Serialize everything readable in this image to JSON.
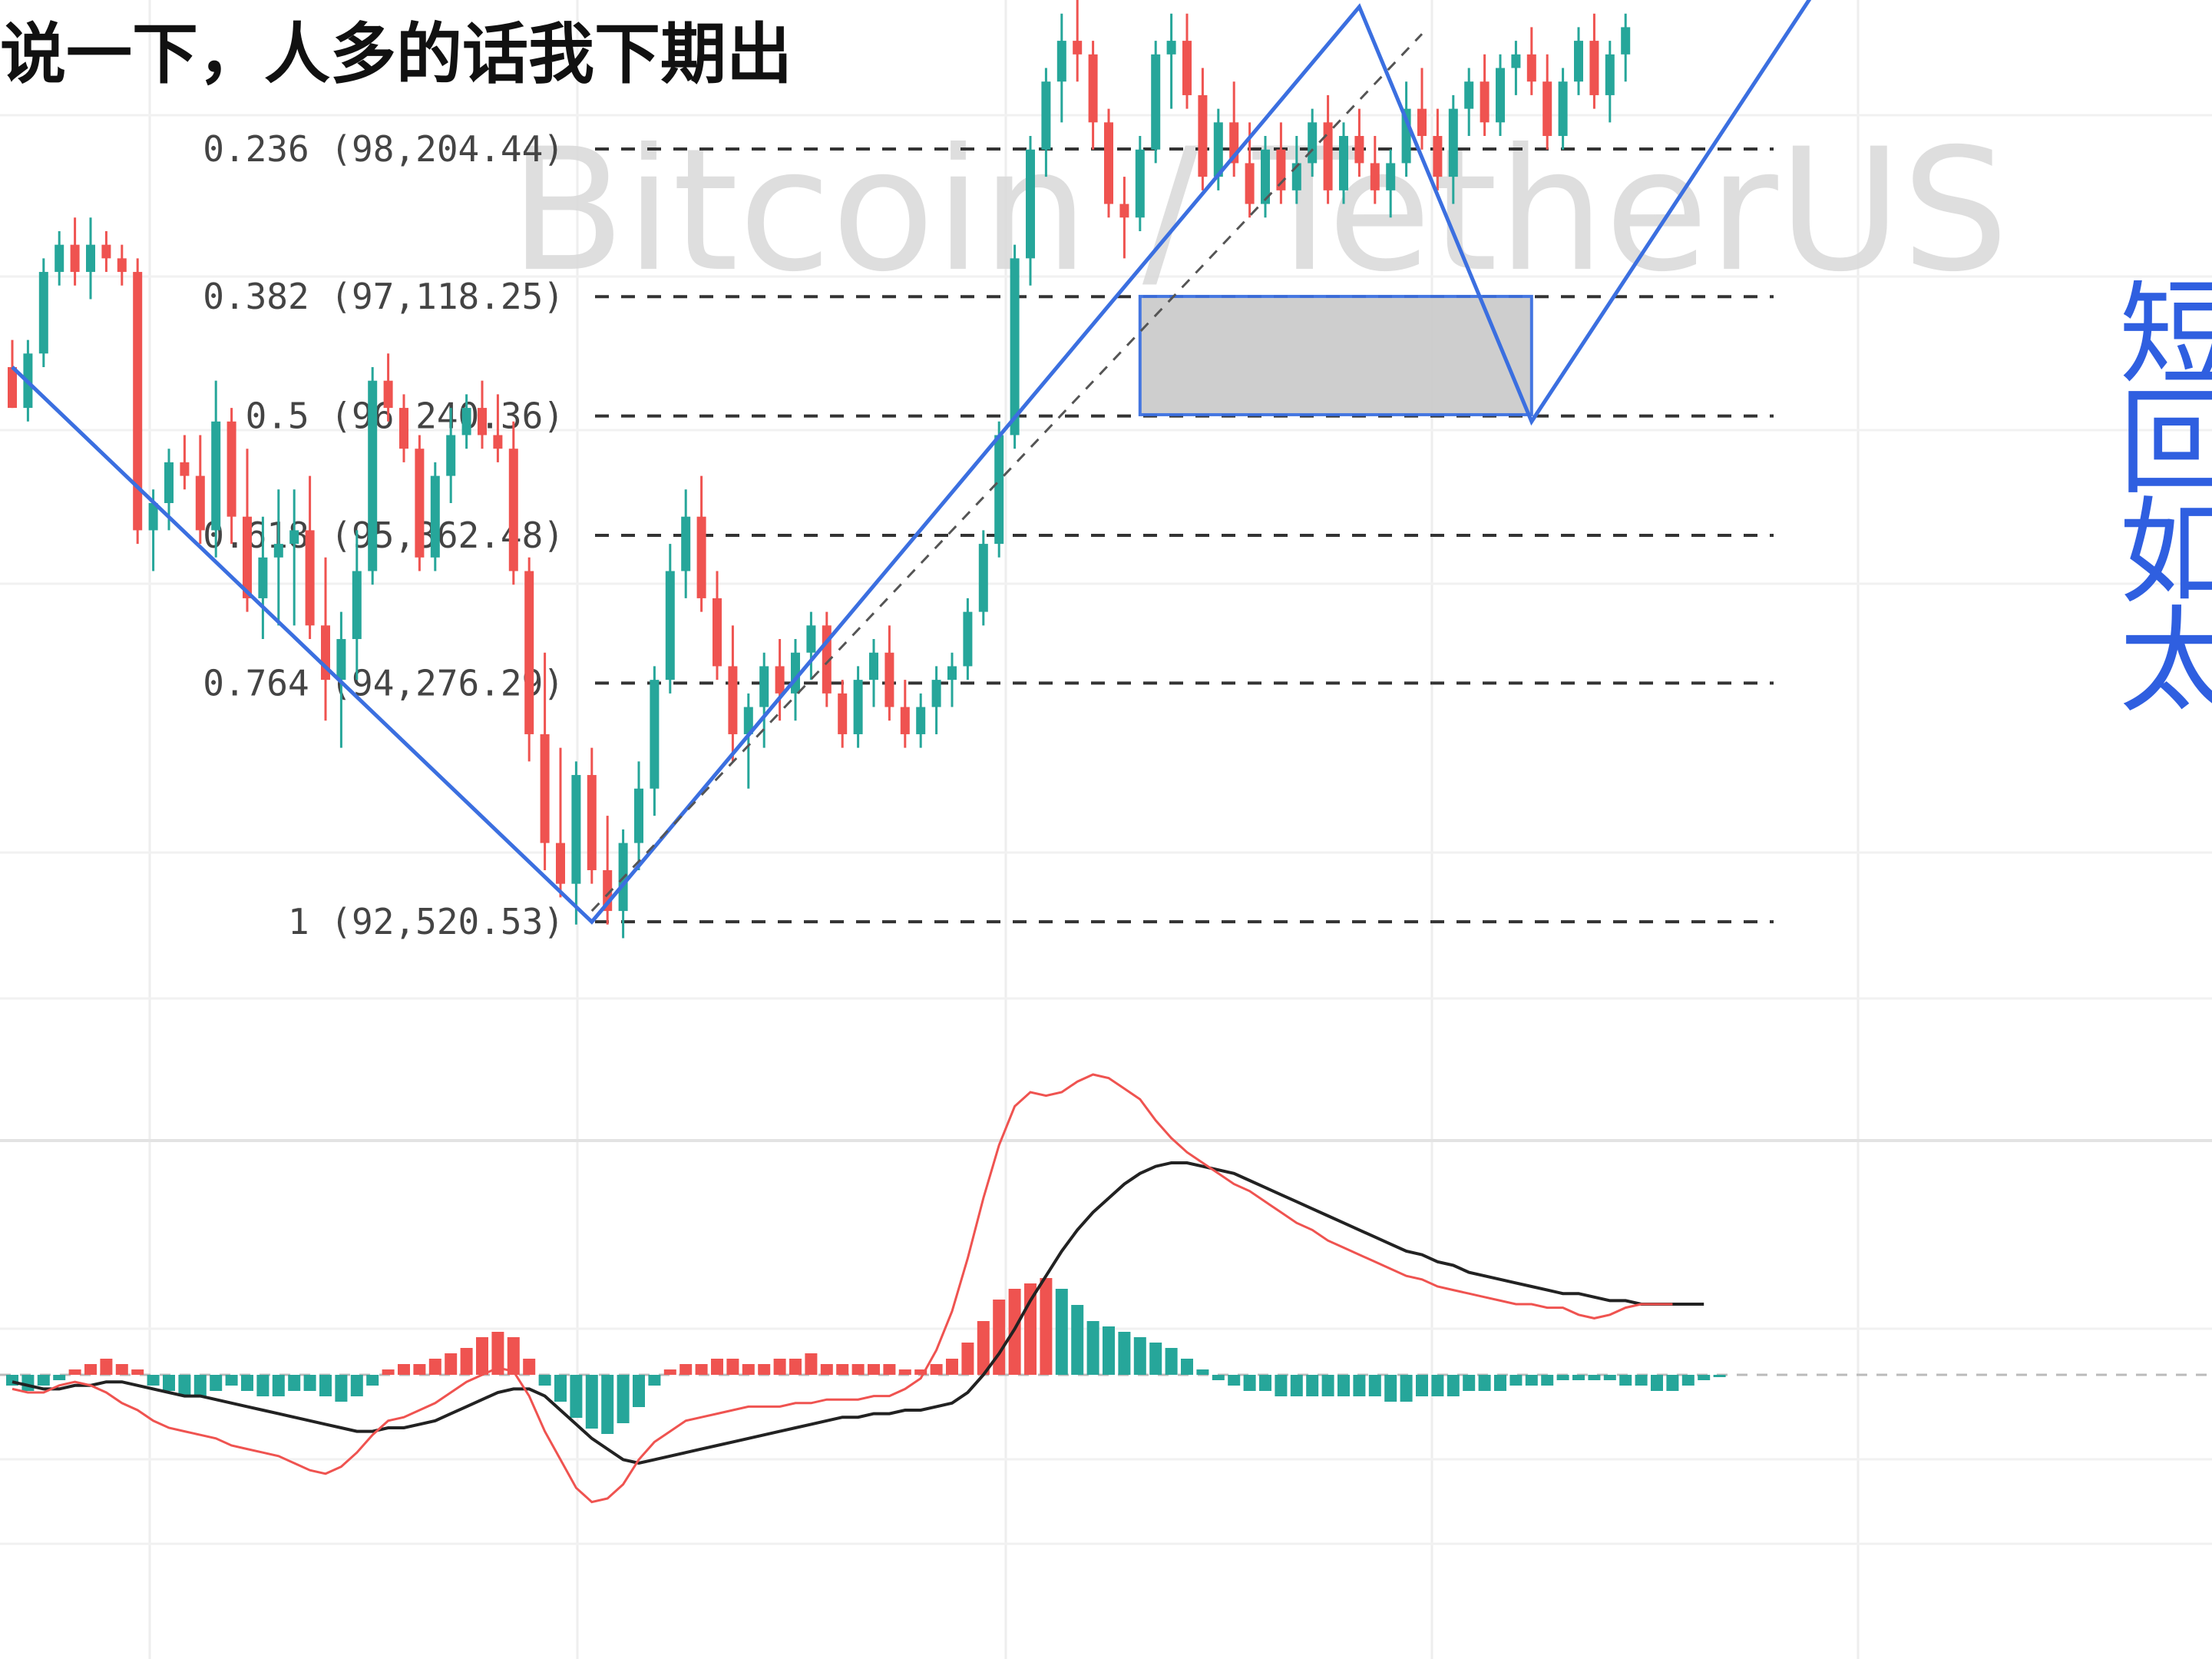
{
  "caption": "说一下，人多的话我下期出",
  "watermark": "Bitcoin / TetherUS",
  "side_note": [
    "短",
    "回",
    "如",
    "太"
  ],
  "colors": {
    "up": "#26a69a",
    "down": "#ef5350",
    "drawing": "#3b6fe0",
    "zone_fill": "#cccccc",
    "macd_signal": "#222222",
    "macd_line": "#ef5350"
  },
  "chart_data": {
    "type": "candlestick",
    "title": "Bitcoin / TetherUS",
    "ylim": [
      91900,
      99300
    ],
    "fibonacci": [
      {
        "ratio": "0.236",
        "price": "98,204.44",
        "value": 98204.44
      },
      {
        "ratio": "0.382",
        "price": "97,118.25",
        "value": 97118.25
      },
      {
        "ratio": "0.5",
        "price": "96,240.36",
        "value": 96240.36
      },
      {
        "ratio": "0.618",
        "price": "95,362.48",
        "value": 95362.48
      },
      {
        "ratio": "0.764",
        "price": "94,276.29",
        "value": 94276.29
      },
      {
        "ratio": "1",
        "price": "92,520.53",
        "value": 92520.53
      }
    ],
    "projection_zone": {
      "top": 97120,
      "bottom": 96250,
      "start_bar": 72,
      "end_bar": 97
    },
    "candles": [
      [
        96600,
        96800,
        96300,
        96300
      ],
      [
        96300,
        96800,
        96200,
        96700
      ],
      [
        96700,
        97400,
        96600,
        97300
      ],
      [
        97300,
        97600,
        97200,
        97500
      ],
      [
        97500,
        97700,
        97200,
        97300
      ],
      [
        97300,
        97700,
        97100,
        97500
      ],
      [
        97500,
        97600,
        97300,
        97400
      ],
      [
        97400,
        97500,
        97200,
        97300
      ],
      [
        97300,
        97400,
        95300,
        95400
      ],
      [
        95400,
        95700,
        95100,
        95600
      ],
      [
        95600,
        96000,
        95400,
        95900
      ],
      [
        95900,
        96100,
        95700,
        95800
      ],
      [
        95800,
        96100,
        95300,
        95400
      ],
      [
        95400,
        96500,
        95200,
        96200
      ],
      [
        96200,
        96300,
        95300,
        95500
      ],
      [
        95500,
        96000,
        94800,
        94900
      ],
      [
        94900,
        95500,
        94600,
        95200
      ],
      [
        95200,
        95700,
        94700,
        95300
      ],
      [
        95300,
        95700,
        94700,
        95400
      ],
      [
        95400,
        95800,
        94600,
        94700
      ],
      [
        94700,
        95200,
        94000,
        94300
      ],
      [
        94300,
        94800,
        93800,
        94600
      ],
      [
        94600,
        95400,
        94300,
        95100
      ],
      [
        95100,
        96600,
        95000,
        96500
      ],
      [
        96500,
        96700,
        96200,
        96300
      ],
      [
        96300,
        96400,
        95900,
        96000
      ],
      [
        96000,
        96100,
        95100,
        95200
      ],
      [
        95200,
        95900,
        95100,
        95800
      ],
      [
        95800,
        96300,
        95600,
        96100
      ],
      [
        96100,
        96400,
        96000,
        96300
      ],
      [
        96300,
        96500,
        96000,
        96100
      ],
      [
        96100,
        96400,
        95900,
        96000
      ],
      [
        96000,
        96200,
        95000,
        95100
      ],
      [
        95100,
        95200,
        93700,
        93900
      ],
      [
        93900,
        94500,
        92900,
        93100
      ],
      [
        93100,
        93800,
        92700,
        92800
      ],
      [
        92800,
        93700,
        92500,
        93600
      ],
      [
        93600,
        93800,
        92800,
        92900
      ],
      [
        92900,
        93300,
        92500,
        92600
      ],
      [
        92600,
        93200,
        92400,
        93100
      ],
      [
        93100,
        93700,
        92900,
        93500
      ],
      [
        93500,
        94400,
        93300,
        94300
      ],
      [
        94300,
        95300,
        94200,
        95100
      ],
      [
        95100,
        95700,
        94900,
        95500
      ],
      [
        95500,
        95800,
        94800,
        94900
      ],
      [
        94900,
        95100,
        94300,
        94400
      ],
      [
        94400,
        94700,
        93700,
        93900
      ],
      [
        93900,
        94200,
        93500,
        94100
      ],
      [
        94100,
        94500,
        93800,
        94400
      ],
      [
        94400,
        94600,
        94000,
        94200
      ],
      [
        94200,
        94600,
        94000,
        94500
      ],
      [
        94500,
        94800,
        94300,
        94700
      ],
      [
        94700,
        94800,
        94100,
        94200
      ],
      [
        94200,
        94300,
        93800,
        93900
      ],
      [
        93900,
        94400,
        93800,
        94300
      ],
      [
        94300,
        94600,
        94100,
        94500
      ],
      [
        94500,
        94700,
        94000,
        94100
      ],
      [
        94100,
        94300,
        93800,
        93900
      ],
      [
        93900,
        94200,
        93800,
        94100
      ],
      [
        94100,
        94400,
        93900,
        94300
      ],
      [
        94300,
        94500,
        94100,
        94400
      ],
      [
        94400,
        94900,
        94300,
        94800
      ],
      [
        94800,
        95400,
        94700,
        95300
      ],
      [
        95300,
        96200,
        95200,
        96100
      ],
      [
        96100,
        97500,
        96000,
        97400
      ],
      [
        97400,
        98300,
        97200,
        98200
      ],
      [
        98200,
        98800,
        98000,
        98700
      ],
      [
        98700,
        99200,
        98400,
        99000
      ],
      [
        99000,
        99300,
        98700,
        98900
      ],
      [
        98900,
        99000,
        98200,
        98400
      ],
      [
        98400,
        98500,
        97700,
        97800
      ],
      [
        97800,
        98000,
        97400,
        97700
      ],
      [
        97700,
        98300,
        97600,
        98200
      ],
      [
        98200,
        99000,
        98100,
        98900
      ],
      [
        98900,
        99200,
        98500,
        99000
      ],
      [
        99000,
        99200,
        98500,
        98600
      ],
      [
        98600,
        98800,
        97900,
        98000
      ],
      [
        98000,
        98500,
        97900,
        98400
      ],
      [
        98400,
        98700,
        98000,
        98100
      ],
      [
        98100,
        98400,
        97700,
        97800
      ],
      [
        97800,
        98300,
        97700,
        98200
      ],
      [
        98200,
        98400,
        97800,
        97900
      ],
      [
        97900,
        98300,
        97800,
        98100
      ],
      [
        98100,
        98500,
        98000,
        98400
      ],
      [
        98400,
        98600,
        97800,
        97900
      ],
      [
        97900,
        98400,
        97800,
        98300
      ],
      [
        98300,
        98500,
        98000,
        98100
      ],
      [
        98100,
        98300,
        97800,
        97900
      ],
      [
        97900,
        98200,
        97700,
        98100
      ],
      [
        98100,
        98700,
        98000,
        98500
      ],
      [
        98500,
        98800,
        98200,
        98300
      ],
      [
        98300,
        98500,
        97900,
        98000
      ],
      [
        98000,
        98600,
        97800,
        98500
      ],
      [
        98500,
        98800,
        98300,
        98700
      ],
      [
        98700,
        98900,
        98300,
        98400
      ],
      [
        98400,
        98900,
        98300,
        98800
      ],
      [
        98800,
        99000,
        98600,
        98900
      ],
      [
        98900,
        99100,
        98600,
        98700
      ],
      [
        98700,
        98900,
        98200,
        98300
      ],
      [
        98300,
        98800,
        98200,
        98700
      ],
      [
        98700,
        99100,
        98600,
        99000
      ],
      [
        99000,
        99200,
        98500,
        98600
      ],
      [
        98600,
        99000,
        98400,
        98900
      ],
      [
        98900,
        99200,
        98700,
        99100
      ]
    ],
    "zigzag_drawn": [
      [
        0,
        96600
      ],
      [
        37,
        92520
      ],
      [
        86,
        99250
      ],
      [
        97,
        96200
      ],
      [
        115,
        99350
      ]
    ],
    "dashed_channel": [
      [
        37,
        92600
      ],
      [
        90,
        99050
      ]
    ],
    "macd": {
      "histogram": [
        -2,
        -3,
        -2,
        -1,
        1,
        2,
        3,
        2,
        1,
        -2,
        -3,
        -4,
        -4,
        -3,
        -2,
        -3,
        -4,
        -4,
        -3,
        -3,
        -4,
        -5,
        -4,
        -2,
        1,
        2,
        2,
        3,
        4,
        5,
        7,
        8,
        7,
        3,
        -2,
        -5,
        -8,
        -10,
        -11,
        -9,
        -6,
        -2,
        1,
        2,
        2,
        3,
        3,
        2,
        2,
        3,
        3,
        4,
        2,
        2,
        2,
        2,
        2,
        1,
        1,
        2,
        3,
        6,
        10,
        14,
        16,
        17,
        18,
        16,
        13,
        10,
        9,
        8,
        7,
        6,
        5,
        3,
        1,
        -1,
        -2,
        -3,
        -3,
        -4,
        -4,
        -4,
        -4,
        -4,
        -4,
        -4,
        -5,
        -5,
        -4,
        -4,
        -4,
        -3,
        -3,
        -3,
        -2,
        -2,
        -2,
        -1,
        -1,
        -1,
        -1,
        -2,
        -2,
        -3,
        -3,
        -2,
        -1,
        0
      ],
      "line_black": [
        -2,
        -3,
        -4,
        -4,
        -3,
        -3,
        -2,
        -2,
        -3,
        -4,
        -5,
        -6,
        -6,
        -7,
        -8,
        -9,
        -10,
        -11,
        -12,
        -13,
        -14,
        -15,
        -16,
        -16,
        -15,
        -15,
        -14,
        -13,
        -11,
        -9,
        -7,
        -5,
        -4,
        -4,
        -6,
        -10,
        -14,
        -18,
        -21,
        -24,
        -25,
        -24,
        -23,
        -22,
        -21,
        -20,
        -19,
        -18,
        -17,
        -16,
        -15,
        -14,
        -13,
        -12,
        -12,
        -11,
        -11,
        -10,
        -10,
        -9,
        -8,
        -5,
        0,
        6,
        13,
        21,
        28,
        35,
        41,
        46,
        50,
        54,
        57,
        59,
        60,
        60,
        59,
        58,
        57,
        55,
        53,
        51,
        49,
        47,
        45,
        43,
        41,
        39,
        37,
        35,
        34,
        32,
        31,
        29,
        28,
        27,
        26,
        25,
        24,
        23,
        23,
        22,
        21,
        21,
        20,
        20,
        20,
        20,
        20
      ],
      "line_red": [
        -4,
        -5,
        -5,
        -3,
        -2,
        -3,
        -5,
        -8,
        -10,
        -13,
        -15,
        -16,
        -17,
        -18,
        -20,
        -21,
        -22,
        -23,
        -25,
        -27,
        -28,
        -26,
        -22,
        -17,
        -13,
        -12,
        -10,
        -8,
        -5,
        -2,
        0,
        2,
        1,
        -6,
        -16,
        -24,
        -32,
        -36,
        -35,
        -31,
        -24,
        -19,
        -16,
        -13,
        -12,
        -11,
        -10,
        -9,
        -9,
        -9,
        -8,
        -8,
        -7,
        -7,
        -7,
        -6,
        -6,
        -4,
        -1,
        7,
        18,
        33,
        50,
        65,
        76,
        80,
        79,
        80,
        83,
        85,
        84,
        81,
        78,
        72,
        67,
        63,
        60,
        57,
        54,
        52,
        49,
        46,
        43,
        41,
        38,
        36,
        34,
        32,
        30,
        28,
        27,
        25,
        24,
        23,
        22,
        21,
        20,
        20,
        19,
        19,
        17,
        16,
        17,
        19,
        20,
        20,
        20
      ]
    }
  }
}
